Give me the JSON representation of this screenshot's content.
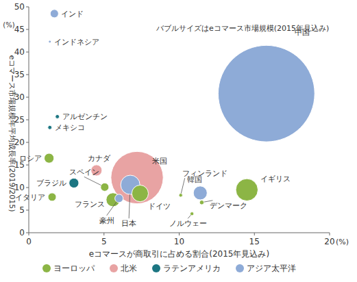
{
  "chart_data": {
    "type": "scatter",
    "xlabel": "eコマースが商取引に占める割合(2015年見込み)",
    "ylabel": "eコマース市場規模年平均成長率(2019/2015)",
    "x_unit": "(%)",
    "y_unit": "(%)",
    "annotation": "バブルサイズはeコマース市場規模(2015年見込み)",
    "xlim": [
      0,
      20
    ],
    "ylim": [
      0,
      50
    ],
    "xticks": [
      0,
      5,
      10,
      15,
      20
    ],
    "yticks": [
      0,
      5,
      10,
      15,
      20,
      25,
      30,
      35,
      40,
      45,
      50
    ],
    "grid": false,
    "legend": "bottom",
    "marker": "circle",
    "series": [
      {
        "name": "ヨーロッパ",
        "color": "#8cb545",
        "labels": [
          "ロシア",
          "スペイン",
          "イタリア",
          "フランス",
          "ドイツ",
          "フィンランド",
          "デンマーク",
          "ノルウェー",
          "イギリス"
        ],
        "x": [
          1.35,
          5.05,
          1.55,
          5.6,
          7.4,
          10.1,
          11.5,
          10.85,
          14.5
        ],
        "values": [
          16.5,
          10.1,
          7.9,
          7.3,
          8.7,
          8.3,
          6.7,
          4.2,
          9.5
        ],
        "sizes": [
          7,
          5,
          5,
          14,
          20,
          1,
          1.5,
          1,
          36
        ]
      },
      {
        "name": "北米",
        "color": "#e8a3a3",
        "labels": [
          "カナダ",
          "米国"
        ],
        "x": [
          4.5,
          7.2
        ],
        "values": [
          13.8,
          12.2
        ],
        "sizes": [
          9,
          200
        ]
      },
      {
        "name": "ラテンアメリカ",
        "color": "#1c7682",
        "labels": [
          "アルゼンチン",
          "メキシコ",
          "ブラジル"
        ],
        "x": [
          1.9,
          1.4,
          3.0
        ],
        "values": [
          25.7,
          23.3,
          11.0
        ],
        "sizes": [
          1.2,
          1.2,
          7
        ]
      },
      {
        "name": "アジア太平洋",
        "color": "#8eabd7",
        "labels": [
          "インド",
          "インドネシア",
          "豪州",
          "日本",
          "韓国",
          "中国"
        ],
        "x": [
          1.7,
          1.4,
          6.0,
          6.75,
          11.4,
          15.8
        ],
        "values": [
          48.5,
          42.3,
          7.6,
          10.6,
          8.8,
          30.8
        ],
        "sizes": [
          5,
          0.5,
          5,
          27,
          14,
          680
        ]
      }
    ]
  }
}
